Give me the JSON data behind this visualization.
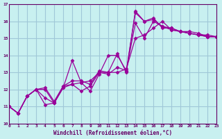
{
  "background_color": "#c8f0f0",
  "grid_color": "#a0c8d8",
  "line_color": "#990099",
  "marker_color": "#990099",
  "xlabel": "Windchill (Refroidissement éolien,°C)",
  "xlim": [
    0,
    23
  ],
  "ylim": [
    10,
    17
  ],
  "yticks": [
    10,
    11,
    12,
    13,
    14,
    15,
    16,
    17
  ],
  "xticks": [
    0,
    1,
    2,
    3,
    4,
    5,
    6,
    7,
    8,
    9,
    10,
    11,
    12,
    13,
    14,
    15,
    16,
    17,
    18,
    19,
    20,
    21,
    22,
    23
  ],
  "series": [
    {
      "x": [
        0,
        1,
        2,
        3,
        4,
        5,
        6,
        7,
        8,
        9,
        10,
        11,
        12,
        13,
        14,
        15,
        16,
        17,
        18,
        19,
        20,
        21,
        22,
        23
      ],
      "y": [
        11.0,
        10.6,
        11.6,
        12.0,
        11.1,
        11.2,
        12.1,
        13.7,
        12.4,
        12.5,
        13.0,
        13.0,
        14.1,
        13.0,
        16.6,
        16.0,
        16.1,
        15.7,
        15.5,
        15.4,
        15.3,
        15.2,
        15.2,
        15.1
      ]
    },
    {
      "x": [
        0,
        1,
        2,
        3,
        4,
        5,
        6,
        7,
        8,
        9,
        10,
        11,
        12,
        13,
        14,
        15,
        16,
        17,
        18,
        19,
        20,
        21,
        22,
        23
      ],
      "y": [
        11.0,
        10.6,
        11.6,
        12.0,
        12.0,
        11.2,
        12.1,
        12.3,
        11.9,
        12.2,
        13.0,
        12.9,
        13.3,
        13.1,
        15.9,
        15.0,
        16.0,
        15.7,
        15.6,
        15.4,
        15.3,
        15.2,
        15.1,
        15.1
      ]
    },
    {
      "x": [
        0,
        1,
        2,
        3,
        4,
        5,
        6,
        7,
        8,
        9,
        10,
        11,
        12,
        13,
        14,
        15,
        16,
        17,
        18,
        19,
        20,
        21,
        22,
        23
      ],
      "y": [
        11.0,
        10.6,
        11.6,
        12.0,
        11.5,
        11.2,
        12.2,
        12.3,
        12.4,
        11.9,
        12.9,
        14.0,
        14.0,
        13.1,
        16.5,
        16.0,
        16.2,
        15.6,
        15.6,
        15.4,
        15.3,
        15.2,
        15.1,
        15.1
      ]
    },
    {
      "x": [
        0,
        1,
        2,
        3,
        4,
        5,
        6,
        7,
        8,
        9,
        10,
        11,
        12,
        13,
        14,
        15,
        16,
        17,
        18,
        19,
        20,
        21,
        22,
        23
      ],
      "y": [
        11.0,
        10.6,
        11.6,
        12.0,
        12.1,
        11.3,
        12.2,
        12.5,
        12.5,
        12.3,
        13.1,
        13.0,
        13.0,
        13.2,
        15.0,
        15.2,
        15.6,
        16.0,
        15.5,
        15.4,
        15.4,
        15.3,
        15.1,
        15.1
      ]
    }
  ]
}
